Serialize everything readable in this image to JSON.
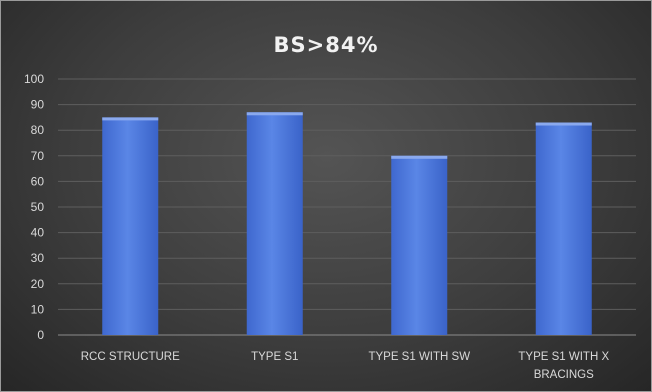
{
  "chart_data": {
    "type": "bar",
    "title": "BS>84%",
    "categories": [
      [
        "RCC STRUCTURE"
      ],
      [
        "TYPE S1"
      ],
      [
        "TYPE S1 WITH SW"
      ],
      [
        "TYPE S1 WITH X",
        "BRACINGS"
      ]
    ],
    "values": [
      85,
      87,
      70,
      83
    ],
    "ylim": [
      0,
      100
    ],
    "yticks": [
      0,
      10,
      20,
      30,
      40,
      50,
      60,
      70,
      80,
      90,
      100
    ],
    "grid": true,
    "legend": "none",
    "colors": {
      "bar_top": "#6f97ec",
      "bar_bottom": "#2f5cc4",
      "bar_cap": "#8aa9ee"
    }
  }
}
